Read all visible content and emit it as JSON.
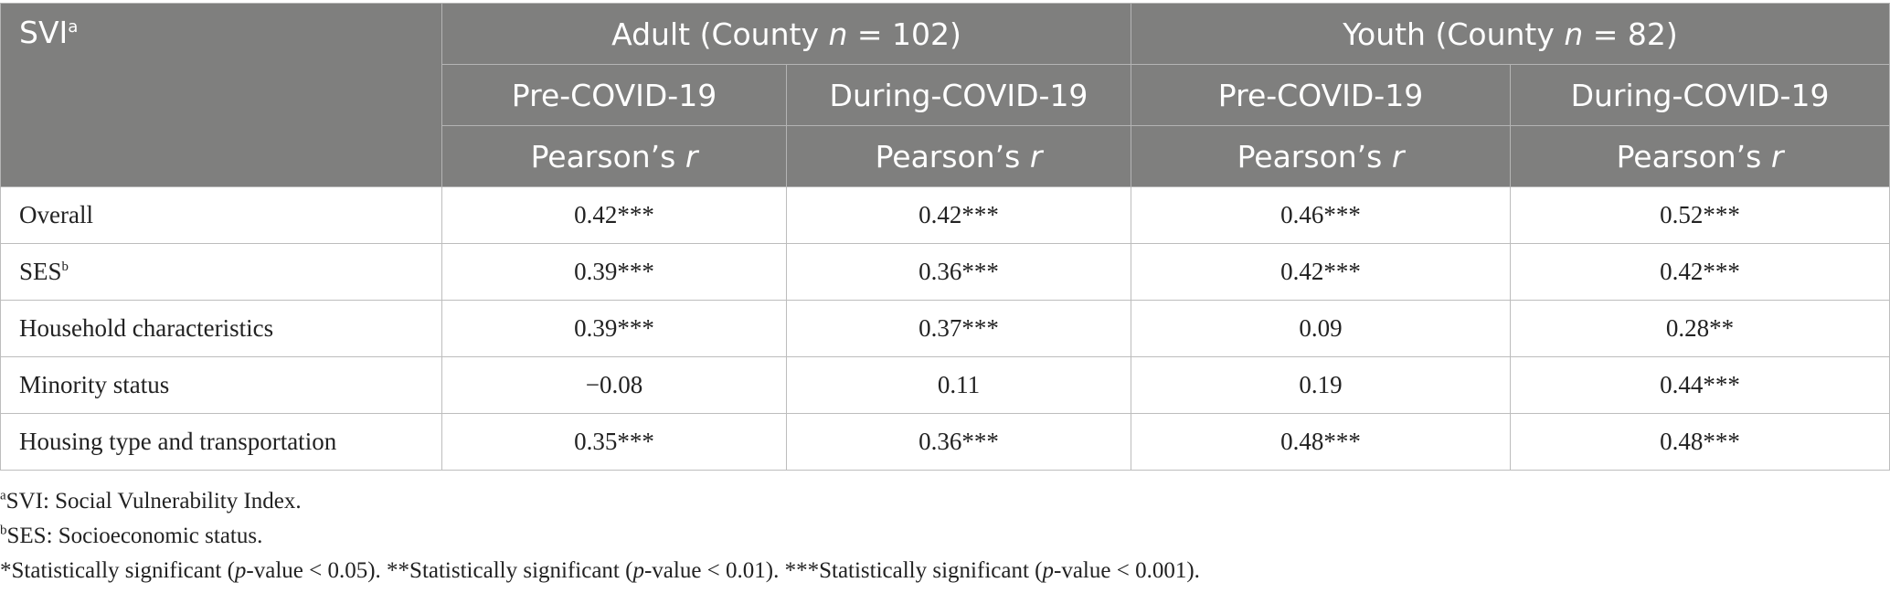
{
  "header": {
    "corner_label": "SVI",
    "corner_sup": "a",
    "groups": [
      {
        "prefix": "Adult (County ",
        "n": "n",
        "suffix": " = 102)"
      },
      {
        "prefix": "Youth (County ",
        "n": "n",
        "suffix": " = 82)"
      }
    ],
    "periods": [
      "Pre-COVID-19",
      "During-COVID-19",
      "Pre-COVID-19",
      "During-COVID-19"
    ],
    "stat_prefix": "Pearson’s ",
    "stat_var": "r"
  },
  "rows": [
    {
      "label": "Overall",
      "sup": "",
      "values": [
        "0.42***",
        "0.42***",
        "0.46***",
        "0.52***"
      ]
    },
    {
      "label": "SES",
      "sup": "b",
      "values": [
        "0.39***",
        "0.36***",
        "0.42***",
        "0.42***"
      ]
    },
    {
      "label": "Household characteristics",
      "sup": "",
      "values": [
        "0.39***",
        "0.37***",
        "0.09",
        "0.28**"
      ]
    },
    {
      "label": "Minority status",
      "sup": "",
      "values": [
        "−0.08",
        "0.11",
        "0.19",
        "0.44***"
      ]
    },
    {
      "label": "Housing type and transportation",
      "sup": "",
      "values": [
        "0.35***",
        "0.36***",
        "0.48***",
        "0.48***"
      ]
    }
  ],
  "footnotes": {
    "a": {
      "sup": "a",
      "text": "SVI: Social Vulnerability Index."
    },
    "b": {
      "sup": "b",
      "text": "SES: Socioeconomic status."
    },
    "sig": {
      "p1a": "*Statistically significant (",
      "p1b": "p",
      "p1c": "-value < 0.05). **Statistically significant (",
      "p2b": "p",
      "p2c": "-value < 0.01). ***Statistically significant (",
      "p3b": "p",
      "p3c": "-value < 0.001)."
    }
  }
}
